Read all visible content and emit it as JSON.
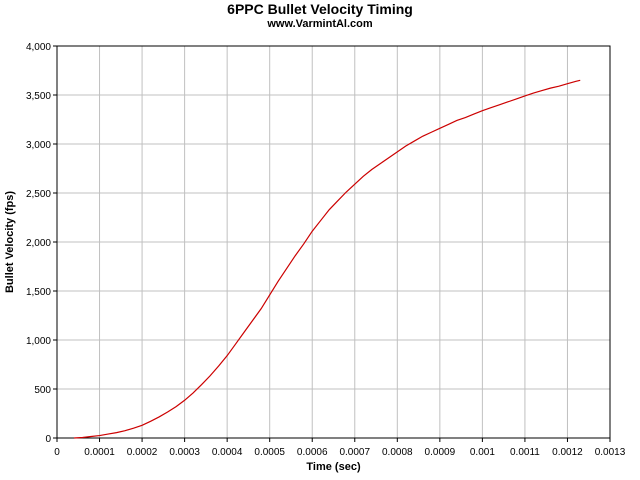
{
  "chart_data": {
    "type": "line",
    "title": "6PPC Bullet Velocity Timing",
    "subtitle": "www.VarmintAl.com",
    "xlabel": "Time (sec)",
    "ylabel": "Bullet Velocity (fps)",
    "xlim": [
      0,
      0.0013
    ],
    "ylim": [
      0,
      4000
    ],
    "grid": true,
    "x_tick_labels": [
      "0",
      "0.0001",
      "0.0002",
      "0.0003",
      "0.0004",
      "0.0005",
      "0.0006",
      "0.0007",
      "0.0008",
      "0.0009",
      "0.001",
      "0.0011",
      "0.0012",
      "0.0013"
    ],
    "y_tick_labels": [
      "0",
      "500",
      "1,000",
      "1,500",
      "2,000",
      "2,500",
      "3,000",
      "3,500",
      "4,000"
    ],
    "line_color": "#cc0000",
    "grid_color": "#c0c0c0",
    "series": [
      {
        "x": [
          4e-05,
          6e-05,
          8e-05,
          0.0001,
          0.00012,
          0.00014,
          0.00016,
          0.00018,
          0.0002,
          0.00022,
          0.00024,
          0.00026,
          0.00028,
          0.0003,
          0.00032,
          0.00034,
          0.00036,
          0.00038,
          0.0004,
          0.00042,
          0.00044,
          0.00046,
          0.00048,
          0.0005,
          0.00052,
          0.00054,
          0.00056,
          0.00058,
          0.0006,
          0.00062,
          0.00064,
          0.00066,
          0.00068,
          0.0007,
          0.00072,
          0.00074,
          0.00076,
          0.00078,
          0.0008,
          0.00082,
          0.00084,
          0.00086,
          0.00088,
          0.0009,
          0.00092,
          0.00094,
          0.00096,
          0.00098,
          0.001,
          0.00102,
          0.00104,
          0.00106,
          0.00108,
          0.0011,
          0.00112,
          0.00114,
          0.00116,
          0.00118,
          0.0012,
          0.00122,
          0.00123
        ],
        "values": [
          0,
          5,
          15,
          25,
          40,
          55,
          75,
          100,
          130,
          170,
          215,
          265,
          320,
          385,
          460,
          545,
          635,
          735,
          840,
          960,
          1080,
          1200,
          1320,
          1460,
          1600,
          1730,
          1860,
          1980,
          2110,
          2220,
          2330,
          2420,
          2510,
          2590,
          2670,
          2740,
          2800,
          2860,
          2920,
          2980,
          3030,
          3080,
          3120,
          3160,
          3200,
          3240,
          3270,
          3305,
          3340,
          3370,
          3400,
          3430,
          3460,
          3490,
          3520,
          3545,
          3570,
          3590,
          3615,
          3640,
          3650
        ]
      }
    ]
  }
}
